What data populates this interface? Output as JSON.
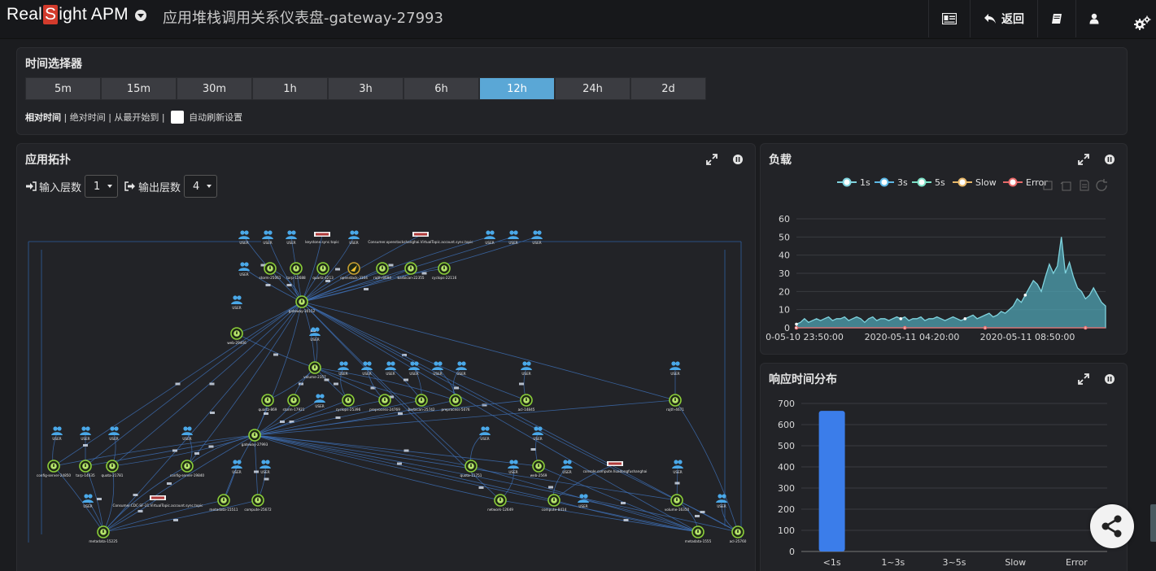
{
  "brand": {
    "prefix": "Real",
    "s": "S",
    "suffix": "ight APM"
  },
  "page_title": "应用堆栈调用关系仪表盘-gateway-27993",
  "header_actions": {
    "back_label": "返回"
  },
  "time_selector": {
    "title": "时间选择器",
    "ranges": [
      "5m",
      "15m",
      "30m",
      "1h",
      "3h",
      "6h",
      "12h",
      "24h",
      "2d"
    ],
    "active": "12h",
    "modes": {
      "relative": "相对时间",
      "absolute": "绝对时间",
      "from_start": "从最开始到"
    },
    "auto_refresh_label": "自动刷新设置"
  },
  "topology": {
    "title": "应用拓扑",
    "input_label": "输入层数",
    "input_value": "1",
    "output_label": "输出层数",
    "output_value": "4"
  },
  "load": {
    "title": "负载",
    "legend": [
      "1s",
      "3s",
      "5s",
      "Slow",
      "Error"
    ],
    "colors": {
      "1s": "#7fd3de",
      "3s": "#5cb8e6",
      "5s": "#7ce0c6",
      "Slow": "#e8b86a",
      "Error": "#e86a6a"
    }
  },
  "chart_data": [
    {
      "type": "area",
      "title": "负载",
      "x_ticks": [
        "0-05-10 23:50:00",
        "2020-05-11 04:20:00",
        "2020-05-11 08:50:00"
      ],
      "ylim": [
        0,
        60
      ],
      "y_ticks": [
        0,
        10,
        20,
        30,
        40,
        50,
        60
      ],
      "grid": true,
      "legend_placement": "top",
      "series": [
        {
          "name": "1s",
          "values": [
            2,
            3,
            5,
            3,
            4,
            5,
            4,
            5,
            6,
            4,
            5,
            5,
            6,
            4,
            5,
            6,
            5,
            3,
            5,
            6,
            4,
            5,
            5,
            4,
            5,
            6,
            5,
            6,
            4,
            5,
            5,
            6,
            4,
            5,
            5,
            6,
            5,
            4,
            5,
            6,
            5,
            4,
            5,
            6,
            7,
            5,
            6,
            7,
            8,
            6,
            7,
            9,
            8,
            10,
            12,
            16,
            14,
            18,
            22,
            26,
            24,
            20,
            28,
            35,
            30,
            34,
            50,
            30,
            36,
            28,
            22,
            20,
            16,
            18,
            22,
            18,
            14,
            12
          ]
        }
      ]
    },
    {
      "type": "bar",
      "title": "响应时间分布",
      "categories": [
        "<1s",
        "1~3s",
        "3~5s",
        "Slow",
        "Error"
      ],
      "values": [
        665,
        0,
        0,
        0,
        0
      ],
      "ylim": [
        0,
        700
      ],
      "y_ticks": [
        0,
        100,
        200,
        300,
        400,
        500,
        600,
        700
      ],
      "color": "#3b7dea"
    }
  ],
  "response_dist": {
    "title": "响应时间分布"
  },
  "topo_graph": {
    "nodes": [
      {
        "id": "u1",
        "kind": "user",
        "label": "USER"
      },
      {
        "id": "u2",
        "kind": "user",
        "label": "USER"
      },
      {
        "id": "u3",
        "kind": "user",
        "label": "USER"
      },
      {
        "id": "t1",
        "kind": "topic",
        "label": "keystone.sync.topic"
      },
      {
        "id": "u4",
        "kind": "user",
        "label": "USER"
      },
      {
        "id": "t2",
        "kind": "topic",
        "label": "Consumer.openstackshanghai.VirtualTopic.account.sync.topic"
      },
      {
        "id": "u5",
        "kind": "user",
        "label": "USER"
      },
      {
        "id": "u6",
        "kind": "user",
        "label": "USER"
      },
      {
        "id": "u7",
        "kind": "user",
        "label": "USER"
      },
      {
        "id": "u8",
        "kind": "user",
        "label": "USER"
      },
      {
        "id": "s1",
        "kind": "svc",
        "label": "storm-25061"
      },
      {
        "id": "s2",
        "kind": "svc",
        "label": "tarp-12688"
      },
      {
        "id": "s3",
        "kind": "svc",
        "label": "quartz-4213"
      },
      {
        "id": "s4",
        "kind": "warn",
        "label": "openstack-3104"
      },
      {
        "id": "s5",
        "kind": "svc",
        "label": "rajth-8694"
      },
      {
        "id": "s6",
        "kind": "svc",
        "label": "barbican-22355"
      },
      {
        "id": "s7",
        "kind": "svc",
        "label": "cyclops-22116"
      },
      {
        "id": "u9",
        "kind": "user",
        "label": "USER"
      },
      {
        "id": "g1",
        "kind": "svc",
        "label": "gateway-30152"
      },
      {
        "id": "w1",
        "kind": "svc",
        "label": "web-29406"
      },
      {
        "id": "u10",
        "kind": "user",
        "label": "USER"
      },
      {
        "id": "v1",
        "kind": "svc",
        "label": "volume-2357"
      },
      {
        "id": "u11",
        "kind": "user",
        "label": "USER"
      },
      {
        "id": "u12",
        "kind": "user",
        "label": "USER"
      },
      {
        "id": "u13",
        "kind": "user",
        "label": "USER"
      },
      {
        "id": "u14",
        "kind": "user",
        "label": "USER"
      },
      {
        "id": "u15",
        "kind": "user",
        "label": "USER"
      },
      {
        "id": "u16",
        "kind": "user",
        "label": "USER"
      },
      {
        "id": "u17",
        "kind": "user",
        "label": "USER"
      },
      {
        "id": "u18",
        "kind": "user",
        "label": "USER"
      },
      {
        "id": "q1",
        "kind": "svc",
        "label": "quartz-869"
      },
      {
        "id": "q2",
        "kind": "svc",
        "label": "storm-17921"
      },
      {
        "id": "u19",
        "kind": "user",
        "label": "USER"
      },
      {
        "id": "q3",
        "kind": "svc",
        "label": "cyclops-25396"
      },
      {
        "id": "q4",
        "kind": "svc",
        "label": "preprocess-24769"
      },
      {
        "id": "q5",
        "kind": "svc",
        "label": "barbican-25742"
      },
      {
        "id": "q6",
        "kind": "svc",
        "label": "preprocess-5076"
      },
      {
        "id": "q7",
        "kind": "svc",
        "label": "acl-14845"
      },
      {
        "id": "q8",
        "kind": "svc",
        "label": "rajth-4671"
      },
      {
        "id": "u20",
        "kind": "user",
        "label": "USER"
      },
      {
        "id": "u21",
        "kind": "user",
        "label": "USER"
      },
      {
        "id": "u22",
        "kind": "user",
        "label": "USER"
      },
      {
        "id": "u23",
        "kind": "user",
        "label": "USER"
      },
      {
        "id": "g2",
        "kind": "svc",
        "label": "gateway-27993"
      },
      {
        "id": "u24",
        "kind": "user",
        "label": "USER"
      },
      {
        "id": "u25",
        "kind": "user",
        "label": "USER"
      },
      {
        "id": "c1",
        "kind": "svc",
        "label": "config-server-24850"
      },
      {
        "id": "c2",
        "kind": "svc",
        "label": "tarp-14635"
      },
      {
        "id": "c3",
        "kind": "svc",
        "label": "quota-21781"
      },
      {
        "id": "c4",
        "kind": "svc",
        "label": "config-server-19840"
      },
      {
        "id": "u26",
        "kind": "user",
        "label": "USER"
      },
      {
        "id": "u27",
        "kind": "user",
        "label": "USER"
      },
      {
        "id": "c5",
        "kind": "svc",
        "label": "quota-11751"
      },
      {
        "id": "u28",
        "kind": "user",
        "label": "USER"
      },
      {
        "id": "c6",
        "kind": "svc",
        "label": "web-2569"
      },
      {
        "id": "u29",
        "kind": "user",
        "label": "USER"
      },
      {
        "id": "t3",
        "kind": "topic",
        "label": "console.compute.huadongfushanghai"
      },
      {
        "id": "u30",
        "kind": "user",
        "label": "USER"
      },
      {
        "id": "u31",
        "kind": "user",
        "label": "USER"
      },
      {
        "id": "t4",
        "kind": "topic",
        "label": "Consumer.CDC-SF-21.VirtualTopic.account.sync.topic"
      },
      {
        "id": "n1",
        "kind": "svc",
        "label": "metadata-15511"
      },
      {
        "id": "n2",
        "kind": "svc",
        "label": "compute-25672"
      },
      {
        "id": "n3",
        "kind": "svc",
        "label": "network-12649"
      },
      {
        "id": "n4",
        "kind": "svc",
        "label": "compute-8414"
      },
      {
        "id": "u32",
        "kind": "user",
        "label": "USER"
      },
      {
        "id": "n5",
        "kind": "svc",
        "label": "volume-16350"
      },
      {
        "id": "u33",
        "kind": "user",
        "label": "USER"
      },
      {
        "id": "m1",
        "kind": "svc",
        "label": "metadata-15225"
      },
      {
        "id": "m2",
        "kind": "svc",
        "label": "metadata-1555"
      },
      {
        "id": "m3",
        "kind": "svc",
        "label": "acl-25760"
      }
    ]
  }
}
